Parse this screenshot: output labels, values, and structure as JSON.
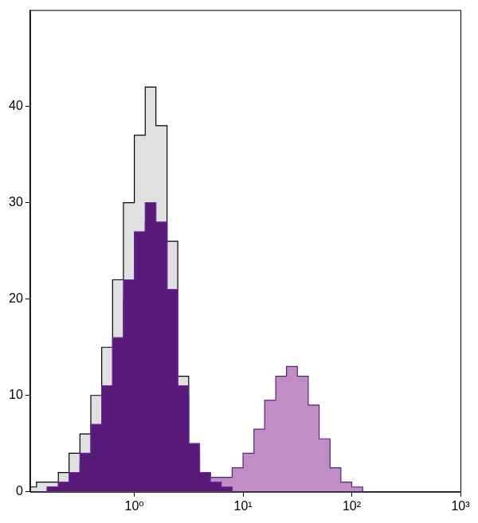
{
  "chart_data": {
    "type": "histogram",
    "bins": [
      0.1,
      0.126,
      0.158,
      0.2,
      0.251,
      0.316,
      0.398,
      0.501,
      0.631,
      0.794,
      1,
      1.26,
      1.58,
      2,
      2.51,
      3.16,
      3.98,
      5.01,
      6.31,
      7.94,
      10,
      12.6,
      15.8,
      20,
      25.1,
      31.6,
      39.8,
      50.1,
      63.1,
      79.4,
      100,
      126,
      158,
      200,
      251,
      316,
      398,
      501,
      631,
      794,
      1000
    ],
    "series": [
      {
        "color": "#e0e0e0",
        "values": [
          0.5,
          1,
          1,
          2,
          4,
          6,
          10,
          15,
          22,
          30,
          37,
          42,
          38,
          26,
          12,
          5,
          2,
          1,
          0.5,
          0,
          0,
          0,
          0,
          0,
          0,
          0,
          0,
          0,
          0,
          0,
          0,
          0,
          0,
          0,
          0,
          0,
          0,
          0,
          0,
          0
        ]
      },
      {
        "color": "#c08ec4",
        "values": [
          0,
          0,
          0.5,
          1,
          2,
          3,
          6,
          10,
          15,
          20,
          25,
          28,
          26,
          19,
          10,
          4,
          2,
          1.5,
          1.5,
          2.5,
          4,
          6.5,
          9.5,
          12,
          13,
          12,
          9,
          5.5,
          2.5,
          1,
          0.5,
          0,
          0,
          0,
          0,
          0,
          0,
          0,
          0,
          0
        ]
      },
      {
        "color": "#581a78",
        "values": [
          0,
          0,
          0.5,
          1,
          2,
          4,
          7,
          11,
          16,
          22,
          27,
          30,
          28,
          21,
          11,
          5,
          2,
          1,
          0.5,
          0,
          0,
          0,
          0,
          0,
          0,
          0,
          0,
          0,
          0,
          0,
          0,
          0,
          0,
          0,
          0,
          0,
          0,
          0,
          0,
          0
        ]
      }
    ],
    "xlim": [
      0.11,
      1000
    ],
    "xticks": [
      {
        "value": 1,
        "label": "10⁰"
      },
      {
        "value": 10,
        "label": "10¹"
      },
      {
        "value": 100,
        "label": "10²"
      },
      {
        "value": 1000,
        "label": "10³"
      }
    ],
    "ylim": [
      0,
      50
    ],
    "yticks": [
      0,
      10,
      20,
      30,
      40
    ],
    "log": "x",
    "grid": false
  }
}
